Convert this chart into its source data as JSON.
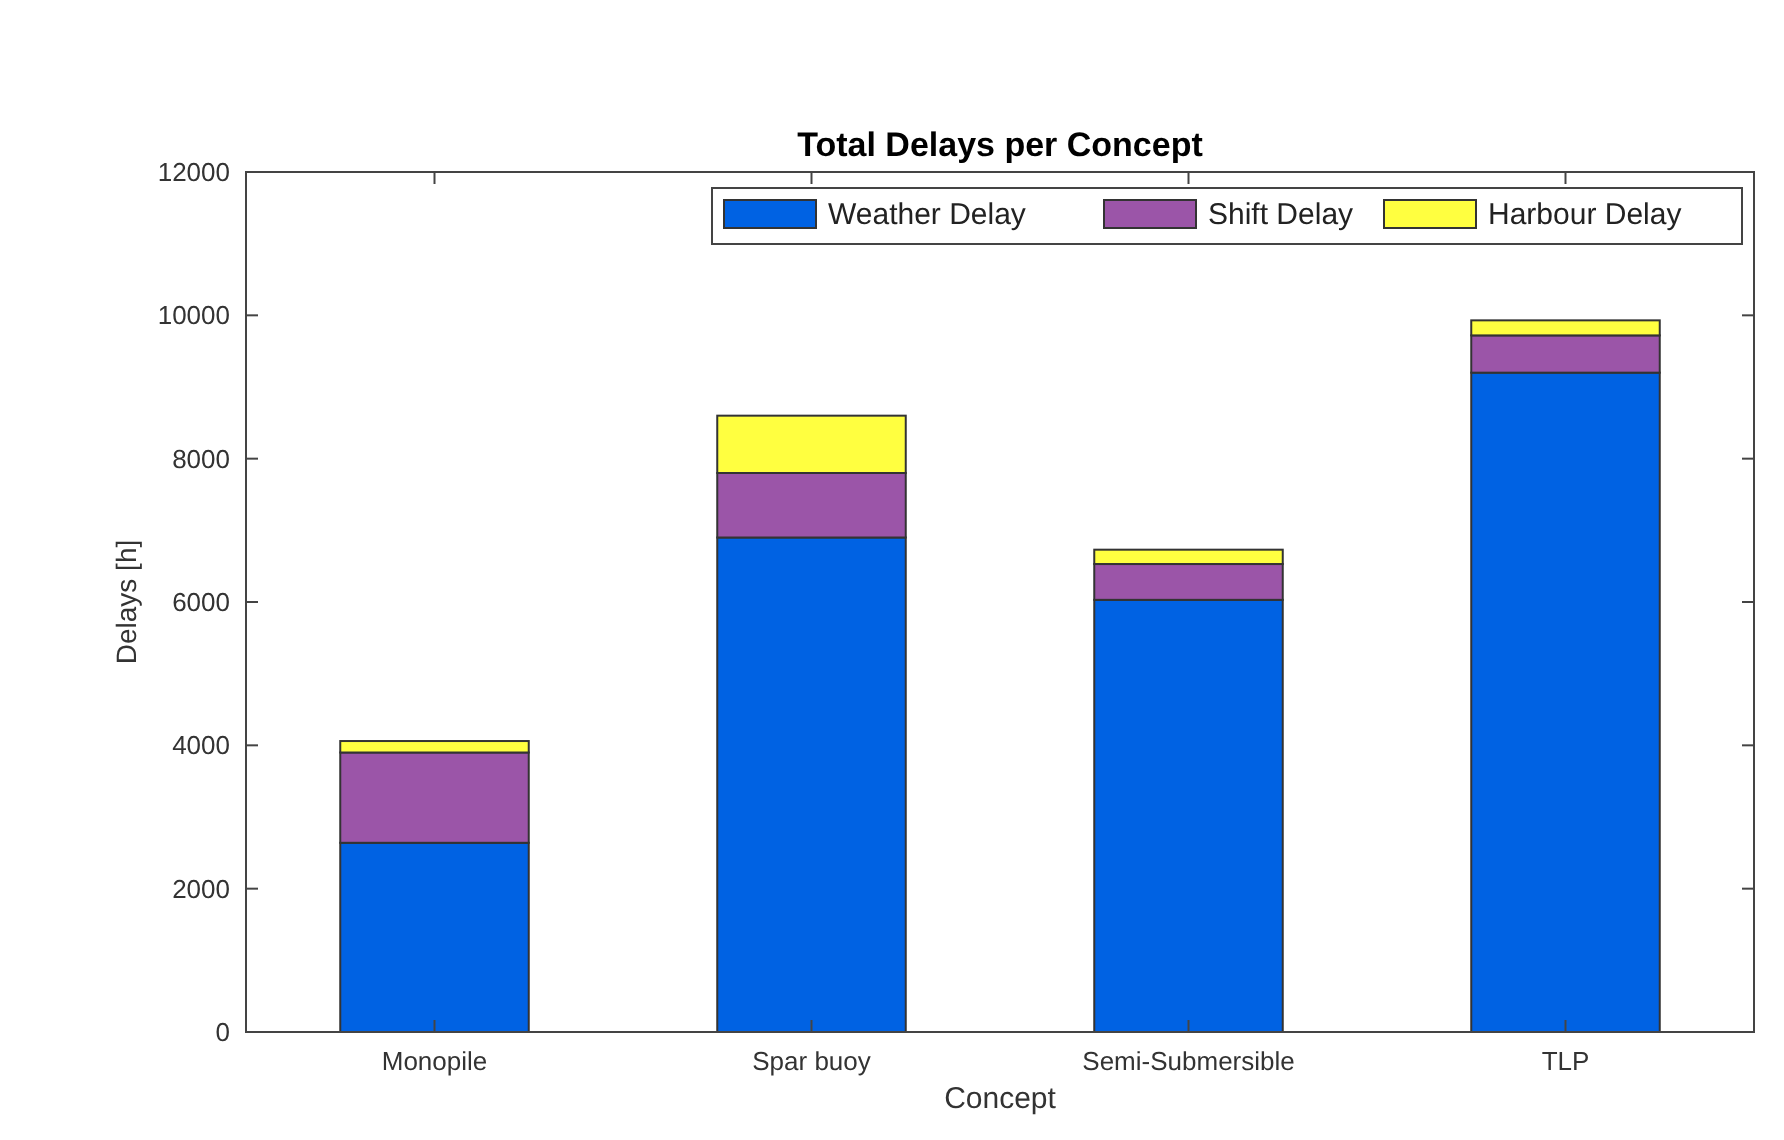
{
  "chart_data": {
    "type": "bar",
    "stacked": true,
    "title": "Total Delays per Concept",
    "xlabel": "Concept",
    "ylabel": "Delays [h]",
    "categories": [
      "Monopile",
      "Spar buoy",
      "Semi-Submersible",
      "TLP"
    ],
    "series": [
      {
        "name": "Weather Delay",
        "color": "#0062e3",
        "values": [
          2640,
          6900,
          6030,
          9200
        ]
      },
      {
        "name": "Shift Delay",
        "color": "#9b55a8",
        "values": [
          1260,
          900,
          500,
          520
        ]
      },
      {
        "name": "Harbour Delay",
        "color": "#ffff40",
        "values": [
          160,
          800,
          200,
          210
        ]
      }
    ],
    "ylim": [
      0,
      12000
    ],
    "yticks": [
      0,
      2000,
      4000,
      6000,
      8000,
      10000,
      12000
    ],
    "grid": false,
    "legend": "top right"
  }
}
